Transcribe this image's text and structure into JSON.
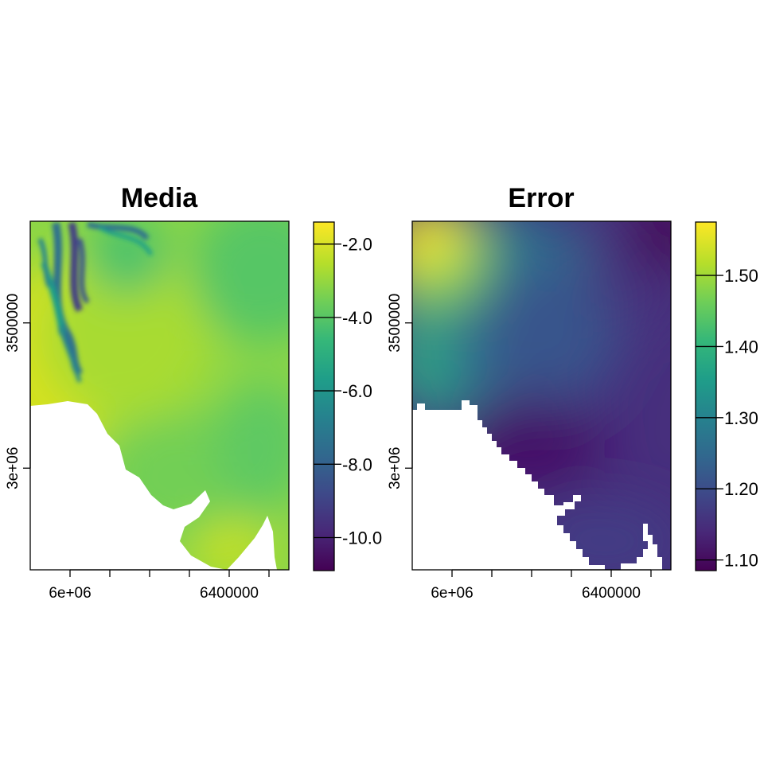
{
  "chart_data": [
    {
      "type": "heatmap",
      "title": "Media",
      "xlabel": "",
      "ylabel": "",
      "xlim": [
        5900000,
        6550000
      ],
      "ylim": [
        2650000,
        3850000
      ],
      "xticks": [
        6000000,
        6100000,
        6200000,
        6300000,
        6400000,
        6500000
      ],
      "xtick_labels": [
        "6e+06",
        "",
        "",
        "",
        "6400000",
        ""
      ],
      "yticks": [
        3000000,
        3500000
      ],
      "ytick_labels": [
        "3e+06",
        "3500000"
      ],
      "colorbar": {
        "range": [
          -10.9,
          -1.4
        ],
        "ticks": [
          -2.0,
          -4.0,
          -6.0,
          -8.0,
          -10.0
        ],
        "tick_labels": [
          "-2.0",
          "-4.0",
          "-6.0",
          "-8.0",
          "-10.0"
        ]
      },
      "field_description": "mostly -2 to -4 across the region; values near -9 to -10 in streaks in the north-west corner",
      "grid": false,
      "legend": "right"
    },
    {
      "type": "heatmap",
      "title": "Error",
      "xlabel": "",
      "ylabel": "",
      "xlim": [
        5900000,
        6550000
      ],
      "ylim": [
        2650000,
        3850000
      ],
      "xticks": [
        6000000,
        6100000,
        6200000,
        6300000,
        6400000,
        6500000
      ],
      "xtick_labels": [
        "6e+06",
        "",
        "",
        "",
        "6400000",
        ""
      ],
      "yticks": [
        3000000,
        3500000
      ],
      "ytick_labels": [
        "3e+06",
        "3500000"
      ],
      "colorbar": {
        "range": [
          1.085,
          1.575
        ],
        "ticks": [
          1.1,
          1.2,
          1.3,
          1.4,
          1.5
        ],
        "tick_labels": [
          "1.10",
          "1.20",
          "1.30",
          "1.40",
          "1.50"
        ]
      },
      "field_description": "highest (~1.55) in the north-west corner, decreasing to ~1.10 towards the east and the southern coast",
      "grid": false,
      "legend": "right"
    }
  ],
  "colormap": {
    "name": "viridis",
    "stops": [
      "#440154",
      "#482878",
      "#3e4989",
      "#31688e",
      "#26828e",
      "#1f9e89",
      "#35b779",
      "#6ece58",
      "#b5de2b",
      "#fde725"
    ]
  }
}
